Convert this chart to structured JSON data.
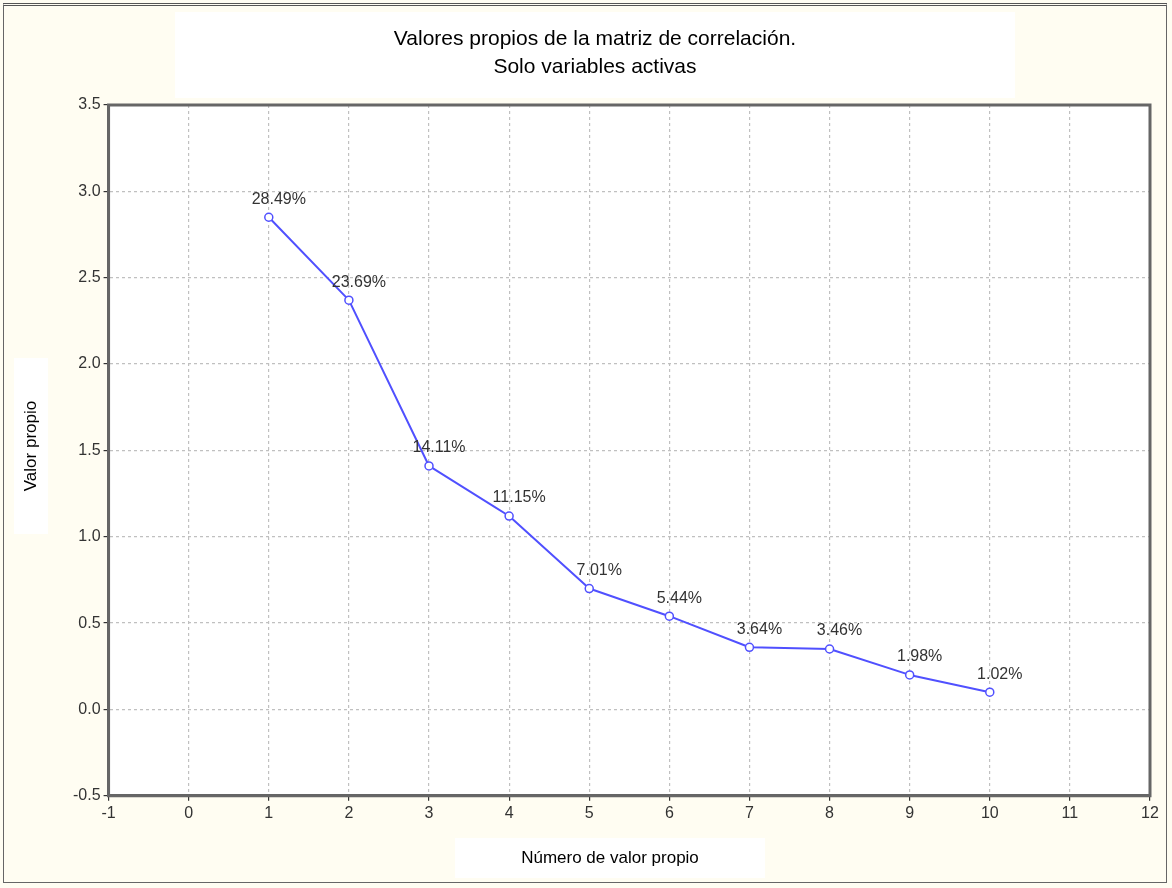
{
  "chart_data": {
    "type": "line",
    "title": "Valores propios de la matriz de correlación.\nSolo variables activas",
    "xlabel": "Número de valor propio",
    "ylabel": "Valor propio",
    "x": [
      1,
      2,
      3,
      4,
      5,
      6,
      7,
      8,
      9,
      10
    ],
    "series": [
      {
        "color": "#5050ff",
        "values": [
          2.85,
          2.37,
          1.41,
          1.12,
          0.7,
          0.54,
          0.36,
          0.35,
          0.2,
          0.1
        ]
      }
    ],
    "annotations": [
      {
        "text": "28.49%",
        "x": 1,
        "y": 2.85
      },
      {
        "text": "23.69%",
        "x": 2,
        "y": 2.37
      },
      {
        "text": "14.11%",
        "x": 3,
        "y": 1.41
      },
      {
        "text": "11.15%",
        "x": 4,
        "y": 1.12
      },
      {
        "text": "7.01%",
        "x": 5,
        "y": 0.7
      },
      {
        "text": "5.44%",
        "x": 6,
        "y": 0.54
      },
      {
        "text": "3.64%",
        "x": 7,
        "y": 0.36
      },
      {
        "text": "3.46%",
        "x": 8,
        "y": 0.35
      },
      {
        "text": "1.98%",
        "x": 9,
        "y": 0.2
      },
      {
        "text": "1.02%",
        "x": 10,
        "y": 0.1
      }
    ],
    "xlim": [
      -1,
      12
    ],
    "xticks": [
      -1,
      0,
      1,
      2,
      3,
      4,
      5,
      6,
      7,
      8,
      9,
      10,
      11,
      12
    ],
    "ylim": [
      -0.5,
      3.5
    ],
    "yticks": [
      -0.5,
      {
        "value": 0,
        "label": "0.0"
      },
      0.5,
      {
        "value": 1,
        "label": "1.0"
      },
      1.5,
      {
        "value": 2,
        "label": "2.0"
      },
      2.5,
      {
        "value": 3,
        "label": "3.0"
      },
      3.5
    ],
    "grid": true,
    "legend": false,
    "marker": "circle",
    "line_style": "solid"
  }
}
